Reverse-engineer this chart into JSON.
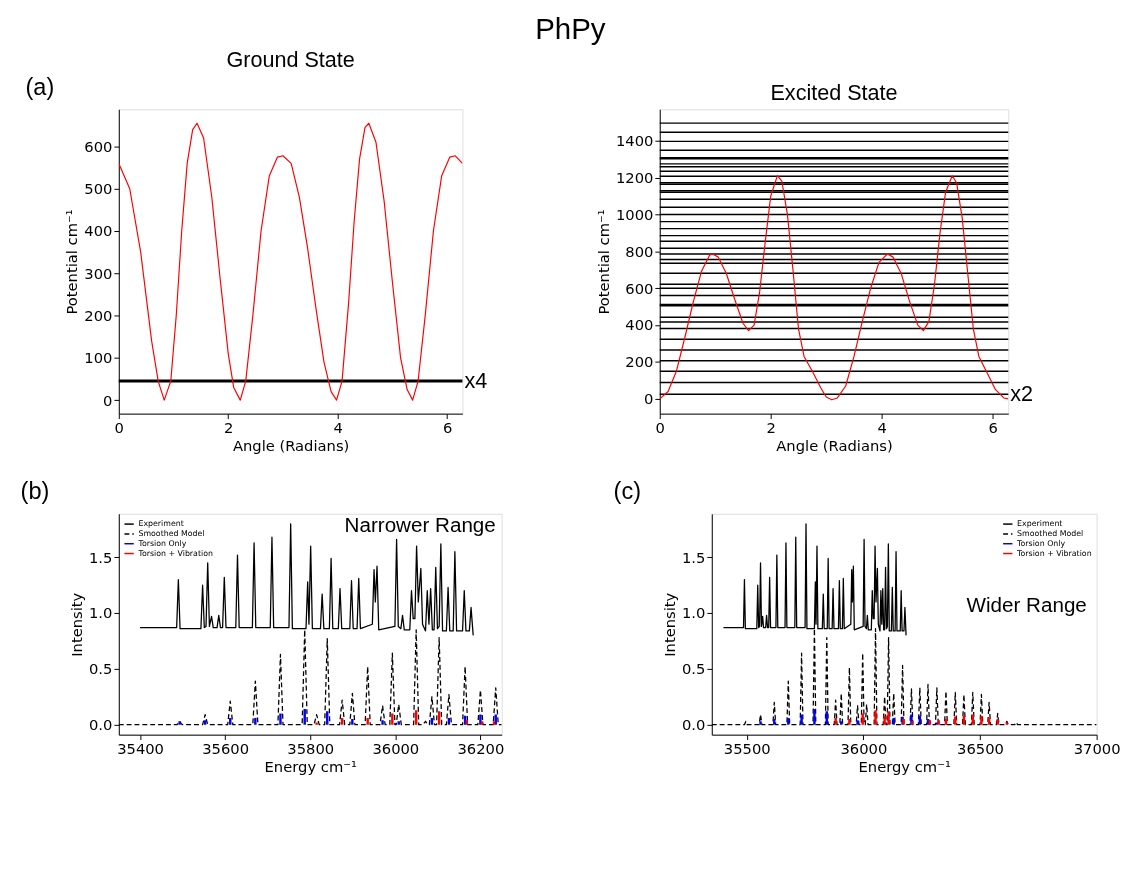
{
  "chart_data": [
    {
      "type": "line",
      "title": "Ground State",
      "xlabel": "Angle (Radians)",
      "ylabel": "Potential cm⁻¹",
      "xlim": [
        0,
        6.28
      ],
      "ylim": [
        -32,
        688
      ],
      "xticks": [
        0,
        2,
        4,
        6
      ],
      "yticks": [
        0,
        100,
        200,
        300,
        400,
        500,
        600
      ],
      "grid": false,
      "legend": false,
      "annotations": [
        "PhPy",
        "(a)"
      ],
      "series": [
        {
          "color": "#ff0000",
          "x": [
            0,
            0.2,
            0.4,
            0.6,
            0.72,
            0.83,
            0.95,
            1.05,
            1.15,
            1.25,
            1.35,
            1.43,
            1.55,
            1.7,
            1.85,
            2.0,
            2.1,
            2.22,
            2.32,
            2.45,
            2.6,
            2.75,
            2.9,
            3.0,
            3.15,
            3.3,
            3.45,
            3.6,
            3.75,
            3.88,
            3.98,
            4.08,
            4.2,
            4.3,
            4.4,
            4.5,
            4.57,
            4.7,
            4.85,
            5.0,
            5.15,
            5.27,
            5.37,
            5.47,
            5.6,
            5.75,
            5.9,
            6.05,
            6.15,
            6.28
          ],
          "values": [
            560,
            500,
            350,
            140,
            45,
            0,
            45,
            200,
            400,
            560,
            640,
            655,
            620,
            480,
            290,
            110,
            30,
            0,
            45,
            200,
            400,
            530,
            575,
            578,
            560,
            480,
            360,
            220,
            90,
            20,
            0,
            45,
            230,
            420,
            570,
            645,
            655,
            610,
            470,
            280,
            100,
            25,
            0,
            45,
            200,
            400,
            530,
            575,
            578,
            560
          ]
        }
      ],
      "ref_lines": [
        {
          "axis": "y",
          "value": 45,
          "label": "x4",
          "color": "#000000"
        }
      ]
    },
    {
      "type": "line",
      "title": "Excited State",
      "xlabel": "Angle (Radians)",
      "ylabel": "Potential cm⁻¹",
      "xlim": [
        0,
        6.28
      ],
      "ylim": [
        -80,
        1570
      ],
      "xticks": [
        0,
        2,
        4,
        6
      ],
      "yticks": [
        0,
        200,
        400,
        600,
        800,
        1000,
        1200,
        1400
      ],
      "grid": false,
      "legend": false,
      "series": [
        {
          "color": "#ff0000",
          "x": [
            0,
            0.15,
            0.3,
            0.45,
            0.6,
            0.75,
            0.9,
            0.95,
            1.05,
            1.2,
            1.35,
            1.5,
            1.6,
            1.7,
            1.8,
            1.9,
            2.0,
            2.12,
            2.2,
            2.3,
            2.4,
            2.5,
            2.6,
            2.75,
            2.9,
            3.0,
            3.1,
            3.2,
            3.35,
            3.5,
            3.65,
            3.8,
            3.95,
            4.1,
            4.2,
            4.35,
            4.5,
            4.65,
            4.75,
            4.85,
            4.95,
            5.05,
            5.15,
            5.27,
            5.35,
            5.45,
            5.55,
            5.65,
            5.75,
            5.9,
            6.05,
            6.2,
            6.28
          ],
          "values": [
            0,
            40,
            150,
            330,
            520,
            690,
            780,
            785,
            770,
            680,
            540,
            410,
            370,
            400,
            580,
            850,
            1100,
            1210,
            1180,
            1000,
            700,
            380,
            230,
            150,
            60,
            10,
            -5,
            5,
            70,
            230,
            420,
            600,
            740,
            785,
            770,
            680,
            530,
            400,
            370,
            420,
            620,
            900,
            1120,
            1210,
            1170,
            980,
            680,
            380,
            230,
            140,
            50,
            5,
            0
          ]
        }
      ],
      "ref_lines": [
        {
          "axis": "y",
          "value": 25,
          "label": "x2",
          "color": "#000000"
        },
        {
          "axis": "y",
          "value": 89,
          "color": "#000000"
        },
        {
          "axis": "y",
          "value": 150,
          "color": "#000000"
        },
        {
          "axis": "y",
          "value": 207,
          "color": "#000000"
        },
        {
          "axis": "y",
          "value": 265,
          "color": "#000000"
        },
        {
          "axis": "y",
          "value": 323,
          "color": "#000000"
        },
        {
          "axis": "y",
          "value": 382,
          "color": "#000000"
        },
        {
          "axis": "y",
          "value": 417,
          "color": "#000000"
        },
        {
          "axis": "y",
          "value": 442,
          "color": "#000000"
        },
        {
          "axis": "y",
          "value": 505,
          "color": "#000000"
        },
        {
          "axis": "y",
          "value": 512,
          "color": "#000000"
        },
        {
          "axis": "y",
          "value": 561,
          "color": "#000000"
        },
        {
          "axis": "y",
          "value": 600,
          "color": "#000000"
        },
        {
          "axis": "y",
          "value": 621,
          "color": "#000000"
        },
        {
          "axis": "y",
          "value": 681,
          "color": "#000000"
        },
        {
          "axis": "y",
          "value": 735,
          "color": "#000000"
        },
        {
          "axis": "y",
          "value": 756,
          "color": "#000000"
        },
        {
          "axis": "y",
          "value": 786,
          "color": "#000000"
        },
        {
          "axis": "y",
          "value": 817,
          "color": "#000000"
        },
        {
          "axis": "y",
          "value": 854,
          "color": "#000000"
        },
        {
          "axis": "y",
          "value": 885,
          "color": "#000000"
        },
        {
          "axis": "y",
          "value": 923,
          "color": "#000000"
        },
        {
          "axis": "y",
          "value": 961,
          "color": "#000000"
        },
        {
          "axis": "y",
          "value": 1000,
          "color": "#000000"
        },
        {
          "axis": "y",
          "value": 1039,
          "color": "#000000"
        },
        {
          "axis": "y",
          "value": 1082,
          "color": "#000000"
        },
        {
          "axis": "y",
          "value": 1120,
          "color": "#000000"
        },
        {
          "axis": "y",
          "value": 1128,
          "color": "#000000"
        },
        {
          "axis": "y",
          "value": 1163,
          "color": "#000000"
        },
        {
          "axis": "y",
          "value": 1172,
          "color": "#000000"
        },
        {
          "axis": "y",
          "value": 1207,
          "color": "#000000"
        },
        {
          "axis": "y",
          "value": 1234,
          "color": "#000000"
        },
        {
          "axis": "y",
          "value": 1258,
          "color": "#000000"
        },
        {
          "axis": "y",
          "value": 1274,
          "color": "#000000"
        },
        {
          "axis": "y",
          "value": 1302,
          "color": "#000000"
        },
        {
          "axis": "y",
          "value": 1308,
          "color": "#000000"
        },
        {
          "axis": "y",
          "value": 1348,
          "color": "#000000"
        },
        {
          "axis": "y",
          "value": 1396,
          "color": "#000000"
        },
        {
          "axis": "y",
          "value": 1445,
          "color": "#000000"
        },
        {
          "axis": "y",
          "value": 1495,
          "color": "#000000"
        }
      ]
    },
    {
      "type": "line",
      "xlabel": "Energy cm⁻¹",
      "ylabel": "Intensity",
      "xlim": [
        35350,
        36250
      ],
      "ylim": [
        -0.09,
        1.89
      ],
      "xticks": [
        35400,
        35600,
        35800,
        36000,
        36200
      ],
      "yticks": [
        {
          "value": 0,
          "label": "0.0"
        },
        {
          "value": 0.5,
          "label": "0.5"
        },
        {
          "value": 1,
          "label": "1.0"
        },
        {
          "value": 1.5,
          "label": "1.5"
        }
      ],
      "grid": false,
      "legend": "top left",
      "annotations": [
        "(b)",
        "Narrower Range"
      ],
      "series": [
        {
          "name": "Experiment",
          "type": "line",
          "line_style": "solid",
          "color": "#000000",
          "x": [
            35400,
            35486,
            35490,
            35494,
            35543,
            35547,
            35551,
            35555,
            35559,
            35563,
            35568,
            35572,
            35581,
            35585,
            35589,
            35594,
            35598,
            35602,
            35625,
            35629,
            35633,
            35664,
            35668,
            35672,
            35706,
            35710,
            35714,
            35750,
            35754,
            35758,
            35790,
            35794,
            35797,
            35801,
            35805,
            35824,
            35828,
            35832,
            35845,
            35849,
            35853,
            35866,
            35870,
            35874,
            35893,
            35897,
            35901,
            35910,
            35914,
            35918,
            35946,
            35950,
            35953,
            35957,
            35961,
            35999,
            36003,
            36007,
            36013,
            36017,
            36021,
            36034,
            36038,
            36042,
            36046,
            36050,
            36054,
            36060,
            36064,
            36071,
            36075,
            36079,
            36083,
            36087,
            36091,
            36095,
            36099,
            36103,
            36107,
            36111,
            36120,
            36124,
            36128,
            36136,
            36140,
            36144,
            36158,
            36162,
            36166,
            36174,
            36178,
            36183
          ],
          "values": [
            0.87,
            0.87,
            1.3,
            0.86,
            0.86,
            1.25,
            0.87,
            0.88,
            1.45,
            0.88,
            0.97,
            0.87,
            0.87,
            0.98,
            0.87,
            0.87,
            1.32,
            0.87,
            0.87,
            1.52,
            0.87,
            0.87,
            1.63,
            0.87,
            0.87,
            1.68,
            0.87,
            0.87,
            1.8,
            0.86,
            0.86,
            1.28,
            0.9,
            1.6,
            0.86,
            0.86,
            1.17,
            0.86,
            0.86,
            1.49,
            0.86,
            0.86,
            1.22,
            0.86,
            0.86,
            1.29,
            0.86,
            0.86,
            1.31,
            0.86,
            0.9,
            1.39,
            1.1,
            1.42,
            0.85,
            0.88,
            1.66,
            0.88,
            0.86,
            0.98,
            0.85,
            0.85,
            1.2,
            0.95,
            0.95,
            1.6,
            1.1,
            1.4,
            0.9,
            0.84,
            1.2,
            0.9,
            1.22,
            0.85,
            0.85,
            1.41,
            0.86,
            0.88,
            1.62,
            0.84,
            0.84,
            1.23,
            0.84,
            0.84,
            1.55,
            0.84,
            0.84,
            1.2,
            0.84,
            0.84,
            1.05,
            0.8
          ]
        },
        {
          "name": "Smoothed Model",
          "type": "line",
          "line_style": "dashed",
          "color": "#000000",
          "x": [
            35350,
            35487,
            35493,
            35499,
            35547,
            35553,
            35559,
            35606,
            35612,
            35618,
            35665,
            35671,
            35677,
            35724,
            35730,
            35736,
            35781,
            35787,
            35793,
            35809,
            35815,
            35821,
            35834,
            35840,
            35846,
            35869,
            35875,
            35881,
            35893,
            35899,
            35905,
            35929,
            35935,
            35941,
            35964,
            35970,
            35976,
            35987,
            35993,
            35999,
            36002,
            36008,
            36014,
            36043,
            36049,
            36055,
            36065,
            36071,
            36077,
            36080,
            36086,
            36092,
            36097,
            36103,
            36109,
            36120,
            36126,
            36132,
            36158,
            36164,
            36170,
            36194,
            36200,
            36206,
            36230,
            36236,
            36242,
            36250
          ],
          "values": [
            0,
            0,
            0.03,
            0,
            0,
            0.09,
            0,
            0,
            0.21,
            0,
            0,
            0.39,
            0,
            0,
            0.63,
            0,
            0,
            0.85,
            0,
            0,
            0.09,
            0,
            0,
            0.77,
            0,
            0,
            0.22,
            0,
            0,
            0.28,
            0,
            0,
            0.52,
            0,
            0,
            0.17,
            0,
            0,
            0.64,
            0,
            0,
            0.18,
            0,
            0,
            0.85,
            0,
            0,
            0.03,
            0,
            0,
            0.25,
            0,
            0,
            0.78,
            0,
            0,
            0.27,
            0,
            0,
            0.52,
            0,
            0,
            0.31,
            0,
            0,
            0.33,
            0,
            0
          ]
        },
        {
          "name": "Torsion Only",
          "type": "bar",
          "color": "#0000ff",
          "x": [
            35493,
            35553,
            35612,
            35671,
            35730,
            35787,
            35840,
            35899,
            35970,
            36008,
            36086,
            36126,
            36164,
            36200,
            36236
          ],
          "values": [
            0.03,
            0.04,
            0.06,
            0.06,
            0.1,
            0.14,
            0.12,
            0.05,
            0.04,
            0.03,
            0.06,
            0.06,
            0.08,
            0.09,
            0.09
          ]
        },
        {
          "name": "Torsion + Vibration",
          "type": "bar",
          "color": "#ff0000",
          "x": [
            35815,
            35875,
            35935,
            35993,
            36049,
            36103,
            36168,
            36204,
            36232
          ],
          "values": [
            0.02,
            0.06,
            0.06,
            0.1,
            0.13,
            0.12,
            0.04,
            0.03,
            0.03
          ]
        }
      ]
    },
    {
      "type": "line",
      "xlabel": "Energy cm⁻¹",
      "ylabel": "Intensity",
      "xlim": [
        35350,
        37000
      ],
      "ylim": [
        -0.09,
        1.89
      ],
      "xticks": [
        35500,
        36000,
        36500,
        37000
      ],
      "yticks": [
        {
          "value": 0,
          "label": "0.0"
        },
        {
          "value": 0.5,
          "label": "0.5"
        },
        {
          "value": 1,
          "label": "1.0"
        },
        {
          "value": 1.5,
          "label": "1.5"
        }
      ],
      "grid": false,
      "legend": "top right",
      "annotations": [
        "(c)",
        "Wider Range"
      ],
      "series": [
        {
          "name": "Experiment",
          "type": "line",
          "line_style": "solid",
          "color": "#000000",
          "x": [
            35400,
            35486,
            35490,
            35494,
            35543,
            35547,
            35551,
            35555,
            35559,
            35563,
            35568,
            35572,
            35581,
            35585,
            35589,
            35594,
            35598,
            35602,
            35625,
            35629,
            35633,
            35664,
            35668,
            35672,
            35706,
            35710,
            35714,
            35750,
            35754,
            35758,
            35790,
            35794,
            35797,
            35801,
            35805,
            35824,
            35828,
            35832,
            35845,
            35849,
            35853,
            35866,
            35870,
            35874,
            35893,
            35897,
            35901,
            35910,
            35914,
            35918,
            35946,
            35950,
            35953,
            35957,
            35961,
            35999,
            36003,
            36007,
            36013,
            36017,
            36021,
            36034,
            36038,
            36042,
            36046,
            36050,
            36054,
            36060,
            36064,
            36071,
            36075,
            36079,
            36083,
            36087,
            36091,
            36095,
            36099,
            36103,
            36107,
            36111,
            36120,
            36124,
            36128,
            36136,
            36140,
            36144,
            36158,
            36162,
            36166,
            36174,
            36178,
            36183
          ],
          "values": [
            0.87,
            0.87,
            1.3,
            0.86,
            0.86,
            1.25,
            0.87,
            0.88,
            1.45,
            0.88,
            0.97,
            0.87,
            0.87,
            0.98,
            0.87,
            0.87,
            1.32,
            0.87,
            0.87,
            1.52,
            0.87,
            0.87,
            1.63,
            0.87,
            0.87,
            1.68,
            0.87,
            0.87,
            1.8,
            0.86,
            0.86,
            1.28,
            0.9,
            1.6,
            0.86,
            0.86,
            1.17,
            0.86,
            0.86,
            1.49,
            0.86,
            0.86,
            1.22,
            0.86,
            0.86,
            1.29,
            0.86,
            0.86,
            1.31,
            0.86,
            0.9,
            1.39,
            1.1,
            1.42,
            0.85,
            0.88,
            1.66,
            0.88,
            0.86,
            0.98,
            0.85,
            0.85,
            1.2,
            0.95,
            0.95,
            1.6,
            1.1,
            1.4,
            0.9,
            0.84,
            1.2,
            0.9,
            1.22,
            0.85,
            0.85,
            1.41,
            0.86,
            0.88,
            1.62,
            0.84,
            0.84,
            1.23,
            0.84,
            0.84,
            1.55,
            0.84,
            0.84,
            1.2,
            0.84,
            0.84,
            1.05,
            0.8
          ]
        },
        {
          "name": "Smoothed Model",
          "type": "line",
          "line_style": "dashed",
          "color": "#000000",
          "x": [
            35350,
            35490,
            35496,
            35502,
            35553,
            35559,
            35565,
            35612,
            35618,
            35624,
            35672,
            35678,
            35684,
            35729,
            35735,
            35741,
            35784,
            35790,
            35796,
            35837,
            35843,
            35849,
            35875,
            35881,
            35887,
            35899,
            35905,
            35911,
            35934,
            35940,
            35946,
            35969,
            35975,
            35981,
            35991,
            35997,
            36003,
            36008,
            36014,
            36020,
            36046,
            36052,
            36058,
            36085,
            36091,
            36097,
            36102,
            36108,
            36114,
            36124,
            36130,
            36136,
            36162,
            36168,
            36174,
            36200,
            36206,
            36212,
            36236,
            36242,
            36248,
            36271,
            36277,
            36283,
            36309,
            36315,
            36321,
            36348,
            36354,
            36360,
            36388,
            36394,
            36400,
            36425,
            36431,
            36437,
            36463,
            36469,
            36475,
            36500,
            36506,
            36512,
            36533,
            36539,
            36545,
            36570,
            36576,
            36582,
            36609,
            36615,
            36621,
            36649,
            36655,
            36661,
            37000
          ],
          "values": [
            0,
            0,
            0.03,
            0,
            0,
            0.09,
            0,
            0,
            0.2,
            0,
            0,
            0.39,
            0,
            0,
            0.64,
            0,
            0,
            0.86,
            0,
            0,
            0.78,
            0,
            0,
            0.22,
            0,
            0,
            0.28,
            0,
            0,
            0.51,
            0,
            0,
            0.17,
            0,
            0,
            0.64,
            0,
            0,
            0.18,
            0,
            0,
            0.86,
            0,
            0,
            0.25,
            0,
            0,
            0.78,
            0,
            0,
            0.28,
            0,
            0,
            0.53,
            0,
            0,
            0.32,
            0,
            0,
            0.33,
            0,
            0,
            0.36,
            0,
            0,
            0.33,
            0,
            0,
            0.3,
            0,
            0,
            0.29,
            0,
            0,
            0.27,
            0,
            0,
            0.29,
            0,
            0,
            0.27,
            0,
            0,
            0.2,
            0,
            0,
            0.1,
            0,
            0,
            0.03,
            0,
            0,
            0.02,
            0,
            0
          ]
        },
        {
          "name": "Torsion Only",
          "type": "bar",
          "color": "#0000ff",
          "x": [
            35559,
            35618,
            35678,
            35735,
            35790,
            35843,
            35905,
            35975,
            36130,
            36168,
            36206,
            36242,
            36277,
            36315
          ],
          "values": [
            0.03,
            0.05,
            0.06,
            0.09,
            0.14,
            0.12,
            0.03,
            0.04,
            0.06,
            0.07,
            0.09,
            0.08,
            0.05,
            0.02
          ]
        },
        {
          "name": "Torsion + Vibration",
          "type": "bar",
          "color": "#ff0000",
          "x": [
            35881,
            35940,
            35997,
            36052,
            36091,
            36108,
            36172,
            36210,
            36285,
            36323,
            36354,
            36394,
            36431,
            36469,
            36506,
            36539,
            36576,
            36615
          ],
          "values": [
            0.06,
            0.05,
            0.1,
            0.13,
            0.08,
            0.12,
            0.05,
            0.03,
            0.04,
            0.04,
            0.05,
            0.07,
            0.08,
            0.09,
            0.08,
            0.06,
            0.05,
            0.02
          ]
        }
      ]
    }
  ]
}
